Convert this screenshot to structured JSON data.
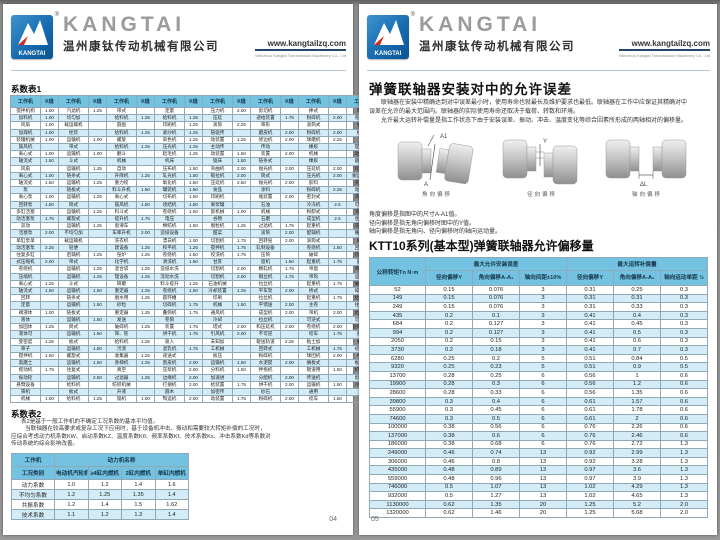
{
  "header": {
    "brand": "KANGTAI",
    "company_cn": "温州康钛传动机械有限公司",
    "website": "www.kangtailzq.com",
    "website_sub": "Wenzhou Kangtai Transmission Machinery Co., Ltd",
    "registered_mark": "®",
    "logo_text": "KANGTAI"
  },
  "left_page": {
    "page_number": "04",
    "table1_title": "系数表1",
    "table1": {
      "head": [
        [
          "工作机",
          "K值",
          "工作机",
          "K值",
          "工作机",
          "K值",
          "工作机",
          "K值",
          "工作机",
          "K值",
          "工作机",
          "K值",
          "工作机",
          "K值",
          "工作机",
          "K值"
        ]
      ],
      "rows": [
        [
          "搅拌机构",
          "1.00",
          "汽滤机",
          "1.25",
          "带式",
          "",
          "定量",
          "",
          "压力机",
          "2.00",
          "剪切机",
          "",
          "棒式",
          "",
          "电缆",
          ""
        ],
        [
          "加料机",
          "1.00",
          "均匀加",
          "",
          "给料机",
          "1.25",
          "给料机",
          "1.25",
          "压延",
          "",
          "递给装置",
          "1.75",
          "粉碎机",
          "2.00",
          "卷装置",
          "1.75"
        ],
        [
          "风扇",
          "1.00",
          "载运输机",
          "",
          "圆盘",
          "",
          "印刷机",
          "1.25",
          "滚筒",
          "2.25",
          "筛形",
          "",
          "滚筒式",
          "",
          "机动",
          ""
        ],
        [
          "加煤机",
          "1.00",
          "栓装",
          "",
          "给料机",
          "1.25",
          "紧纱机",
          "1.25",
          "链驱传",
          "",
          "磨皮机",
          "2.00",
          "粉碎机",
          "2.00",
          "绞车",
          "1.75"
        ],
        [
          "装罐机械",
          "1.00",
          "运输机",
          "1.00",
          "螺旋",
          "",
          "染色机",
          "1.25",
          "动装置",
          "1.25",
          "修边机",
          "2.00",
          "球磨机",
          "2.25",
          "泵",
          "1.75"
        ],
        [
          "鼓风机",
          "",
          "带式",
          "",
          "给料机",
          "1.25",
          "压光机",
          "1.25",
          "主动传",
          "",
          "传动",
          "",
          "橡胶",
          "",
          "搅拌桶",
          ""
        ],
        [
          "离心式",
          "1.00",
          "运输机",
          "1.00",
          "翻斗",
          "",
          "起毛机",
          "1.25",
          "动装置",
          "1.50",
          "装置",
          "2.00",
          "机械",
          "",
          "动装置",
          "1.75"
        ],
        [
          "轴流式",
          "1.50",
          "斗式",
          "",
          "机械",
          "",
          "机床",
          "",
          "锯床",
          "1.50",
          "链条式",
          "",
          "橡胶",
          "",
          "圆整机",
          "1.75"
        ],
        [
          "风扇",
          "",
          "运输机",
          "1.25",
          "自动",
          "",
          "压布机",
          "1.50",
          "弯曲机",
          "2.00",
          "抛光机",
          "2.00",
          "压延机",
          "2.00",
          "轮圈式",
          ""
        ],
        [
          "离心式",
          "1.00",
          "链条式",
          "",
          "升降机",
          "1.25",
          "轧光机",
          "1.50",
          "锻拉机",
          "2.00",
          "筒式",
          "",
          "压光机",
          "2.00",
          "搬运装置",
          "2.25"
        ],
        [
          "轴流式",
          "1.50",
          "运输机",
          "1.25",
          "重力绞",
          "",
          "氧化机",
          "1.50",
          "压延机",
          "2.50",
          "抛光机",
          "2.00",
          "胶料",
          "",
          "夹具传",
          ""
        ],
        [
          "泵",
          "",
          "链板式",
          "",
          "料斗升机",
          "1.50",
          "罐装机",
          "1.50",
          "食品",
          "",
          "涂料",
          "",
          "粉碎机",
          "2.25",
          "动装置",
          "2.25"
        ],
        [
          "离心泵",
          "1.00",
          "运输机",
          "1.25",
          "离心式",
          "",
          "切布机",
          "1.50",
          "印刷机",
          "",
          "瓶装置",
          "2.00",
          "密封式",
          "",
          "洗衣机",
          ""
        ],
        [
          "回转泵",
          "1.50",
          "筒式",
          "",
          "鼓风机",
          "1.50",
          "烧结机",
          "1.50",
          "果浆罐",
          "",
          "石油",
          "",
          "冷冻机",
          "2.5",
          "可逆式",
          ""
        ],
        [
          "多缸活塞",
          "",
          "运输机",
          "1.25",
          "料斗式",
          "",
          "卷绕机",
          "1.50",
          "絮机械",
          "1.00",
          "机械",
          "",
          "粉卸式",
          "",
          "洗衣机",
          "2.00"
        ],
        [
          "动活塞泵",
          "1.75",
          "螺旋式",
          "",
          "提升机",
          "1.75",
          "电压",
          "",
          "谷物",
          "",
          "石磨",
          "",
          "成型机",
          "2.5",
          "连续式",
          ""
        ],
        [
          "双动",
          "",
          "运输机",
          "1.25",
          "窗滑车",
          "",
          "棉纺机",
          "1.50",
          "脱粒机",
          "1.25",
          "过滤机",
          "1.75",
          "起重机",
          "",
          "洗衣机",
          "2.00"
        ],
        [
          "活塞泵",
          "2.00",
          "不均匀加",
          "",
          "车库升机",
          "2.00",
          "造纸设备",
          "",
          "甜菜",
          "",
          "滚筒",
          "2.00",
          "配辅机",
          "",
          "锤式粉",
          ""
        ],
        [
          "单缸泵单",
          "",
          "载运输机",
          "",
          "洗衣机",
          "",
          "漂白机",
          "1.00",
          "切割机",
          "1.75",
          "回转窑",
          "2.00",
          "滚筒式",
          "",
          "碎机",
          "2.00"
        ],
        [
          "动活塞泵",
          "2.25",
          "轻便",
          "",
          "建设备",
          "1.25",
          "校平机",
          "1.25",
          "搅拌机",
          "1.75",
          "轧制设备",
          "",
          "卷绕机",
          "1.50",
          "回转式",
          ""
        ],
        [
          "往复多缸",
          "",
          "启辅机",
          "1.25",
          "窑炉",
          "1.25",
          "卷绕机",
          "1.50",
          "绞洗机",
          "1.75",
          "压筒",
          "",
          "破碎",
          "",
          "热压机",
          "1.50"
        ],
        [
          "式压缩机",
          "2.00",
          "带式",
          "",
          "化学机",
          "",
          "清洗机",
          "1.50",
          "甘蔗",
          "",
          "窗机",
          "1.50",
          "起重机",
          "1.75",
          "震动",
          ""
        ],
        [
          "卷绕机",
          "",
          "运输机",
          "1.25",
          "混合袋",
          "1.25",
          "造纸水洗",
          "",
          "切割机",
          "2.00",
          "精轧机",
          "1.75",
          "吊盘",
          "",
          "筛选机",
          "2.5"
        ],
        [
          "压缩机",
          "",
          "运输机",
          "1.25",
          "理设备",
          "1.25",
          "流动水洗",
          "",
          "切割机",
          "2.00",
          "钢丝机",
          "1.75",
          "吊钩",
          "",
          "运输机",
          "2.5"
        ],
        [
          "离心式",
          "1.25",
          "斗式",
          "",
          "研磨",
          "",
          "料斗提升",
          "1.25",
          "石油机械",
          "",
          "拉丝机",
          "",
          "起重机",
          "1.75",
          "破碎机",
          ""
        ],
        [
          "轴流式",
          "1.50",
          "运输机",
          "1.50",
          "重定器",
          "1.25",
          "卷绕机",
          "1.50",
          "冷却装置",
          "1.25",
          "平车架",
          "2.00",
          "桥式",
          "",
          "碎矿机",
          "2.75"
        ],
        [
          "回转",
          "",
          "链条式",
          "",
          "脱水用",
          "1.25",
          "圆环槽",
          "",
          "印刷",
          "",
          "拉丝机",
          "",
          "起重机",
          "1.75",
          "给料机",
          "2.75"
        ],
        [
          "定量",
          "",
          "运输机",
          "1.50",
          "砂粒",
          "",
          "切碎机",
          "1.75",
          "机械",
          "1.50",
          "平馈送",
          "2.00",
          "主卷",
          "",
          "往复式",
          ""
        ],
        [
          "阀液体",
          "1.00",
          "链板式",
          "",
          "重定器",
          "1.25",
          "叠筒机",
          "1.75",
          "通风机",
          "",
          "成型机",
          "2.00",
          "吊机",
          "2.00",
          "给料机",
          "2.5"
        ],
        [
          "液体",
          "",
          "运输机",
          "1.50",
          "发送",
          "",
          "卷筒",
          "",
          "冷却",
          "",
          "拉丝机",
          "",
          "可逆式",
          "",
          "可逆输",
          ""
        ],
        [
          "加固体",
          "1.25",
          "筒式",
          "",
          "破碎机",
          "1.25",
          "装置",
          "1.75",
          "塔式",
          "2.00",
          "和压延机",
          "2.00",
          "卷绕机",
          "2.00",
          "送料装置",
          "2.5"
        ],
        [
          "液体可",
          "",
          "运输机",
          "1.50",
          "筛、筐",
          "",
          "烘干机",
          "1.75",
          "引风机",
          "2.00",
          "不可逆",
          "",
          "绞车",
          "1.75",
          "重型",
          ""
        ],
        [
          "变密度",
          "1.25",
          "板式",
          "",
          "给料机",
          "1.25",
          "吸入",
          "",
          "未知加",
          "",
          "辊送轨道",
          "2.25",
          "粘土加",
          "",
          "机械",
          ""
        ],
        [
          "筛子",
          "",
          "运输机",
          "1.50",
          "污泥",
          "",
          "混乳机",
          "1.75",
          "工机械",
          "",
          "回转式",
          "",
          "工机械",
          "1.75",
          "初轧机",
          "≥2.75"
        ],
        [
          "搅拌机",
          "1.50",
          "螺旋式",
          "",
          "收集器",
          "1.25",
          "递送式",
          "",
          "板压",
          "",
          "粉碎机",
          "",
          "球团机",
          "2.00",
          "中厚",
          ""
        ],
        [
          "黑磨土",
          "",
          "运输机",
          "1.50",
          "蒸梯机",
          "1.25",
          "割皮机",
          "2.00",
          "运输机",
          "1.50",
          "水泥搅",
          "2.00",
          "搁板式",
          "",
          "板轧机",
          "≥2.75"
        ],
        [
          "摇动机",
          "1.75",
          "往复式",
          "",
          "真空",
          "",
          "压浆机",
          "2.00",
          "分料机",
          "1.50",
          "拌拖机",
          "",
          "辊道用",
          "1.50",
          "机架辊",
          "≥2.75"
        ],
        [
          "振动轮",
          "",
          "运输机",
          "2.50",
          "过滤器",
          "1.25",
          "边缘机",
          "2.00",
          "加速进",
          "",
          "分配机",
          "2.00",
          "传送机",
          "",
          "剪切机",
          "≥2.75"
        ],
        [
          "悬臂设备",
          "",
          "给料机",
          "",
          "纺织机械",
          "",
          "打捆机",
          "2.00",
          "给装置",
          "1.75",
          "烘干机",
          "2.00",
          "运输机",
          "1.50",
          "冷连轧",
          "≥2.75"
        ],
        [
          "筛机",
          "",
          "板式",
          "",
          "升液",
          "",
          "圆木",
          "",
          "加密传",
          "",
          "砂石",
          "",
          "通用",
          "",
          "",
          ""
        ],
        [
          "机械",
          "1.00",
          "给料机",
          "1.25",
          "锯机",
          "1.00",
          "陶运机",
          "2.00",
          "动装置",
          "1.75",
          "粉碎机",
          "2.00",
          "绞车",
          "1.50",
          "",
          ""
        ]
      ]
    },
    "table2_title": "系数表2",
    "table2_notes": {
      "line1": "表2是基于一般工作机的不确定工况系数的基本平均值。",
      "line2": "当联轴器在较高要求或复杂工况下应用时，基于设备机冲击、振动和需要较大转矩补偿的工况时，",
      "line3": "应综合考虑动力机系数KW、启动系数KZ、温度系数Kθ、频率系数Kf、技术系数Ks、冲击系数Kd等系数对",
      "line4": "传动系统的综合影响改善。"
    },
    "table2": {
      "corner": "工作机",
      "group": "动力机名称",
      "sub": [
        "工况类别",
        "电动机汽轮机",
        "≥4缸内燃机",
        "2缸内燃机",
        "单缸内燃机"
      ],
      "rows": [
        [
          "动力系数",
          "1.0",
          "1.2",
          "1.4",
          "1.6"
        ],
        [
          "不均匀系数",
          "1.2",
          "1.25",
          "1.35",
          "1.4"
        ],
        [
          "共振系数",
          "1.2",
          "1.4",
          "1.5",
          "1.62"
        ],
        [
          "技术系数",
          "1.1",
          "1.2",
          "1.3",
          "1.4"
        ]
      ]
    }
  },
  "right_page": {
    "page_number": "05",
    "title": "弹簧联轴器安装对中的允许误差",
    "intro": {
      "line1": "联轴器在安装中精确达到对中误差最小时，使用寿命也就最长及维护要求也最低。联轴器在工作中应保证其精确对中",
      "line2": "误差在允许的最大范围内。联轴器的实际使用寿命还取决于载荷、转数和环境。",
      "line3": "允许最大运转补偿量是指工作状态下由于安装误差、振动、冲击、温度变化等综合因素所形成的两轴相对的偏移量。"
    },
    "figures": {
      "angular": {
        "caption": "角向偏移",
        "label_top": "A1",
        "label_bottom": "A"
      },
      "radial": {
        "caption": "径向偏移",
        "label": "Y"
      },
      "axial": {
        "caption": "轴向偏移",
        "label": "ΔL"
      }
    },
    "notes": {
      "line1": "角度偏移是指图中的尺寸A-A1值。",
      "line2": "径向偏移是指无角向偏移时图中的Y值。",
      "line3": "轴向偏移是指无角向、径向偏移时的轴向运动量。"
    },
    "section_title": "KTT10系列(基本型)弹簧联轴器允许偏移量",
    "ktt10": {
      "col_torque": "公称转矩Tn N·m",
      "group1": "最大允许安装误差",
      "group2": "最大运转补偿量",
      "sub1": [
        "径向偏移Y",
        "角向偏移A-A₁",
        "轴向间距±10%"
      ],
      "sub2": [
        "径向偏移Y",
        "角向偏移A-A₁",
        "轴向运动单距 ½"
      ],
      "rows": [
        [
          "52",
          "0.15",
          "0.076",
          "3",
          "0.31",
          "0.25",
          "0.3"
        ],
        [
          "149",
          "0.15",
          "0.076",
          "3",
          "0.31",
          "0.31",
          "0.3"
        ],
        [
          "249",
          "0.15",
          "0.076",
          "3",
          "0.31",
          "0.33",
          "0.3"
        ],
        [
          "435",
          "0.2",
          "0.1",
          "3",
          "0.41",
          "0.4",
          "0.3"
        ],
        [
          "684",
          "0.2",
          "0.127",
          "3",
          "0.41",
          "0.45",
          "0.3"
        ],
        [
          "994",
          "0.2",
          "0.127",
          "3",
          "0.41",
          "0.5",
          "0.3"
        ],
        [
          "2050",
          "0.2",
          "0.15",
          "3",
          "0.41",
          "0.6",
          "0.3"
        ],
        [
          "3730",
          "0.2",
          "0.18",
          "3",
          "0.41",
          "0.7",
          "0.3"
        ],
        [
          "6280",
          "0.25",
          "0.2",
          "5",
          "0.51",
          "0.84",
          "0.5"
        ],
        [
          "9320",
          "0.25",
          "0.23",
          "5",
          "0.51",
          "0.9",
          "0.5"
        ],
        [
          "13700",
          "0.28",
          "0.25",
          "6",
          "0.56",
          "1",
          "0.6"
        ],
        [
          "19900",
          "0.28",
          "0.3",
          "6",
          "0.56",
          "1.2",
          "0.6"
        ],
        [
          "28600",
          "0.28",
          "0.33",
          "6",
          "0.56",
          "1.35",
          "0.6"
        ],
        [
          "39800",
          "0.3",
          "0.4",
          "6",
          "0.61",
          "1.57",
          "0.6"
        ],
        [
          "55900",
          "0.3",
          "0.45",
          "6",
          "0.61",
          "1.78",
          "0.6"
        ],
        [
          "74600",
          "0.3",
          "0.5",
          "6",
          "0.61",
          "2",
          "0.6"
        ],
        [
          "100000",
          "0.38",
          "0.56",
          "6",
          "0.76",
          "2.26",
          "0.6"
        ],
        [
          "137000",
          "0.38",
          "0.6",
          "6",
          "0.76",
          "2.46",
          "0.6"
        ],
        [
          "186000",
          "0.38",
          "0.68",
          "6",
          "0.76",
          "2.72",
          "1.3"
        ],
        [
          "249000",
          "0.46",
          "0.74",
          "13",
          "0.92",
          "2.99",
          "1.3"
        ],
        [
          "306000",
          "0.46",
          "0.8",
          "13",
          "0.92",
          "3.28",
          "1.3"
        ],
        [
          "435000",
          "0.48",
          "0.89",
          "13",
          "0.97",
          "3.6",
          "1.3"
        ],
        [
          "559000",
          "0.48",
          "0.96",
          "13",
          "0.97",
          "3.9",
          "1.3"
        ],
        [
          "746000",
          "0.5",
          "1.07",
          "13",
          "1.02",
          "4.29",
          "1.3"
        ],
        [
          "932000",
          "0.5",
          "1.27",
          "13",
          "1.02",
          "4.65",
          "1.3"
        ],
        [
          "1130000",
          "0.62",
          "1.35",
          "20",
          "1.25",
          "5.2",
          "2.0"
        ],
        [
          "1320000",
          "0.62",
          "1.46",
          "20",
          "1.25",
          "5.68",
          "2.0"
        ]
      ]
    }
  }
}
